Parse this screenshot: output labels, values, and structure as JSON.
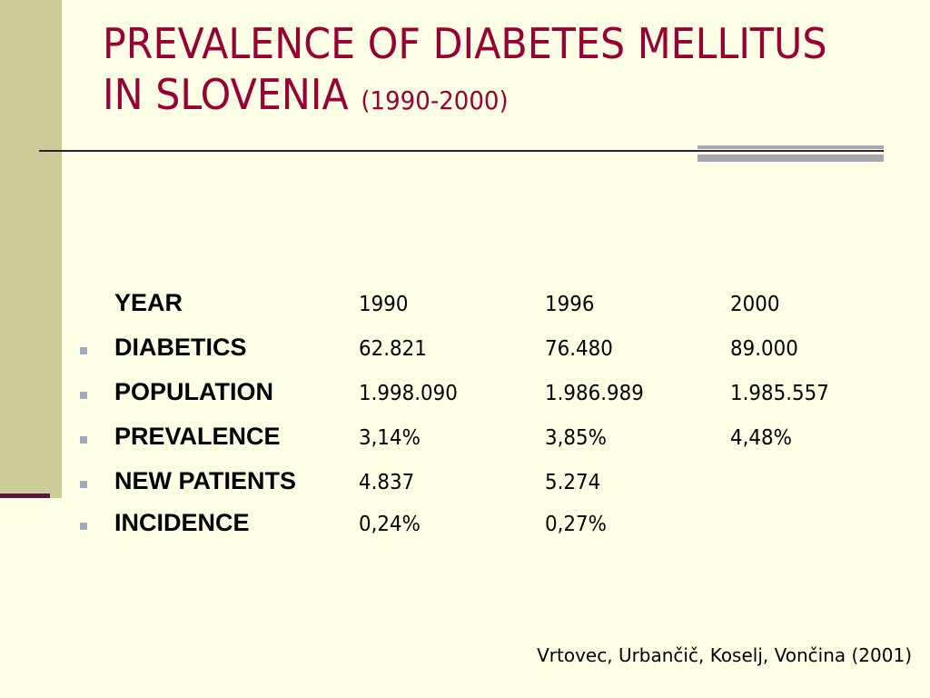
{
  "slide": {
    "title_main": "PREVALENCE OF DIABETES MELLITUS IN SLOVENIA",
    "title_sub": "(1990-2000)",
    "citation": "Vrtovec, Urbančič, Koselj, Vončina (2001)",
    "colors": {
      "background": "#FFFFE5",
      "title": "#990033",
      "side_band": "#CCCC99",
      "bullet": "#A4A8BE"
    }
  },
  "table": {
    "header": {
      "label": "YEAR",
      "values": [
        "1990",
        "1996",
        "2000"
      ]
    },
    "rows": [
      {
        "label": "DIABETICS",
        "values": [
          "62.821",
          "76.480",
          "89.000"
        ]
      },
      {
        "label": "POPULATION",
        "values": [
          "1.998.090",
          "1.986.989",
          "1.985.557"
        ]
      },
      {
        "label": "PREVALENCE",
        "values": [
          "3,14%",
          "3,85%",
          "4,48%"
        ]
      },
      {
        "label": "NEW PATIENTS",
        "values": [
          "4.837",
          "5.274",
          ""
        ]
      },
      {
        "label": "INCIDENCE",
        "values": [
          "0,24%",
          "0,27%",
          ""
        ]
      }
    ]
  }
}
